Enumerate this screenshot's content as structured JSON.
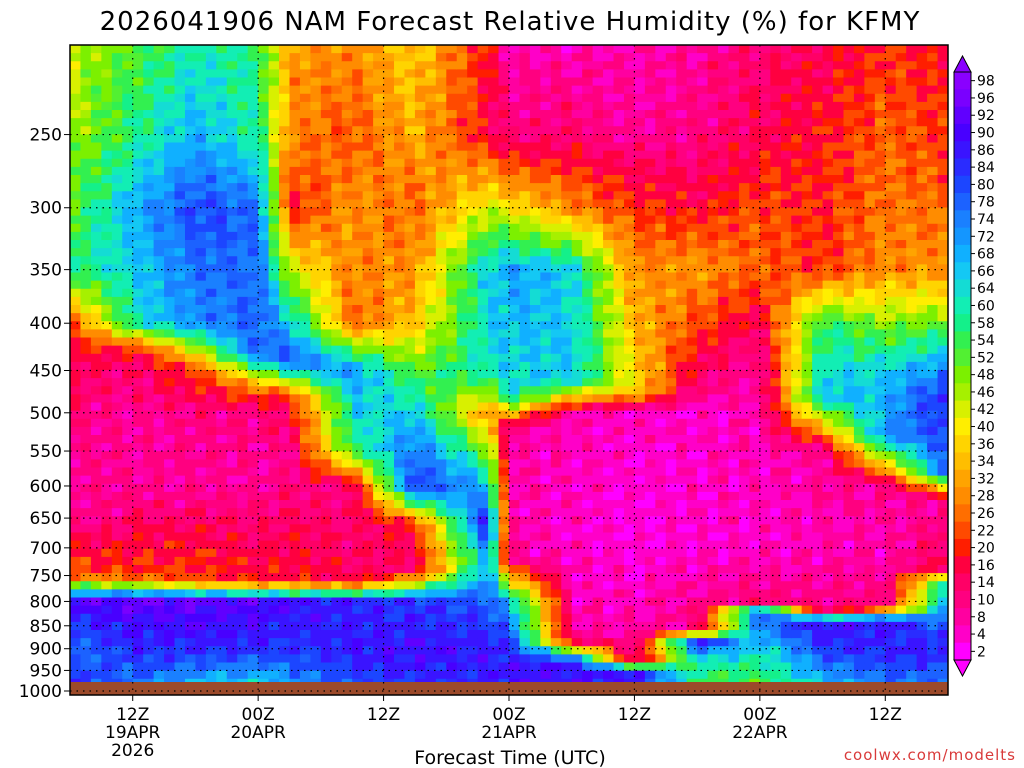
{
  "chart_data": {
    "type": "heatmap",
    "title": "2026041906 NAM Forecast Relative Humidity (%) for KFMY",
    "xlabel": "Forecast Time (UTC)",
    "ylabel": "",
    "credit": "coolwx.com/modelts",
    "y_axis": {
      "scale": "log-pressure",
      "range": [
        1010,
        200
      ],
      "ticks": [
        "250",
        "300",
        "350",
        "400",
        "450",
        "500",
        "550",
        "600",
        "650",
        "700",
        "750",
        "800",
        "850",
        "900",
        "950",
        "1000"
      ]
    },
    "x_axis": {
      "range_hours": [
        0,
        84
      ],
      "ticks": [
        {
          "hour": 6,
          "lines": [
            "12Z",
            "19APR",
            "2026"
          ]
        },
        {
          "hour": 18,
          "lines": [
            "00Z",
            "20APR"
          ]
        },
        {
          "hour": 30,
          "lines": [
            "12Z"
          ]
        },
        {
          "hour": 42,
          "lines": [
            "00Z",
            "21APR"
          ]
        },
        {
          "hour": 54,
          "lines": [
            "12Z"
          ]
        },
        {
          "hour": 66,
          "lines": [
            "00Z",
            "22APR"
          ]
        },
        {
          "hour": 78,
          "lines": [
            "12Z"
          ]
        }
      ]
    },
    "colorbar": {
      "labels": [
        "98",
        "96",
        "92",
        "90",
        "86",
        "84",
        "80",
        "78",
        "74",
        "72",
        "68",
        "66",
        "64",
        "60",
        "58",
        "54",
        "52",
        "48",
        "46",
        "42",
        "40",
        "36",
        "34",
        "32",
        "28",
        "26",
        "22",
        "20",
        "16",
        "14",
        "10",
        "8",
        "4",
        "2"
      ],
      "colors": [
        "#8a00ff",
        "#7a00ff",
        "#6000ff",
        "#4800ff",
        "#3a14ff",
        "#2a2cff",
        "#1c46ff",
        "#1c62ff",
        "#1a80ff",
        "#1496ff",
        "#10b0ff",
        "#14c8f4",
        "#14dcd4",
        "#12eeb4",
        "#14f08a",
        "#32f050",
        "#52f032",
        "#7cf000",
        "#a6f000",
        "#d8f000",
        "#ffee00",
        "#ffd400",
        "#ffbe00",
        "#ffa400",
        "#ff8c00",
        "#ff6e00",
        "#ff4a00",
        "#ff1e00",
        "#ff0040",
        "#ff0066",
        "#ff0080",
        "#ff00a0",
        "#ff00c8",
        "#ff00ff"
      ]
    },
    "ground_color": "#9c4a2a",
    "rh_profiles": [
      {
        "hour": 0,
        "levels": [
          [
            1000,
            86
          ],
          [
            900,
            76
          ],
          [
            800,
            92
          ],
          [
            750,
            26
          ],
          [
            650,
            10
          ],
          [
            500,
            12
          ],
          [
            400,
            22
          ],
          [
            350,
            58
          ],
          [
            300,
            52
          ],
          [
            250,
            48
          ],
          [
            200,
            44
          ]
        ]
      },
      {
        "hour": 6,
        "levels": [
          [
            1000,
            76
          ],
          [
            900,
            86
          ],
          [
            800,
            94
          ],
          [
            750,
            22
          ],
          [
            600,
            10
          ],
          [
            500,
            10
          ],
          [
            430,
            16
          ],
          [
            400,
            62
          ],
          [
            300,
            70
          ],
          [
            250,
            58
          ],
          [
            200,
            54
          ]
        ]
      },
      {
        "hour": 12,
        "levels": [
          [
            1000,
            66
          ],
          [
            900,
            86
          ],
          [
            800,
            94
          ],
          [
            760,
            24
          ],
          [
            600,
            10
          ],
          [
            500,
            12
          ],
          [
            450,
            22
          ],
          [
            400,
            74
          ],
          [
            300,
            82
          ],
          [
            250,
            70
          ],
          [
            200,
            62
          ]
        ]
      },
      {
        "hour": 18,
        "levels": [
          [
            1000,
            60
          ],
          [
            900,
            86
          ],
          [
            800,
            92
          ],
          [
            760,
            20
          ],
          [
            600,
            10
          ],
          [
            500,
            12
          ],
          [
            470,
            28
          ],
          [
            430,
            80
          ],
          [
            300,
            78
          ],
          [
            250,
            60
          ],
          [
            200,
            58
          ]
        ]
      },
      {
        "hour": 21,
        "levels": [
          [
            1000,
            70
          ],
          [
            900,
            84
          ],
          [
            800,
            90
          ],
          [
            760,
            20
          ],
          [
            550,
            10
          ],
          [
            480,
            20
          ],
          [
            440,
            82
          ],
          [
            300,
            20
          ],
          [
            250,
            30
          ],
          [
            200,
            32
          ]
        ]
      },
      {
        "hour": 27,
        "levels": [
          [
            1000,
            80
          ],
          [
            900,
            88
          ],
          [
            800,
            86
          ],
          [
            760,
            16
          ],
          [
            600,
            12
          ],
          [
            550,
            56
          ],
          [
            450,
            74
          ],
          [
            400,
            26
          ],
          [
            300,
            32
          ],
          [
            250,
            24
          ],
          [
            200,
            30
          ]
        ]
      },
      {
        "hour": 33,
        "levels": [
          [
            1000,
            84
          ],
          [
            900,
            90
          ],
          [
            800,
            84
          ],
          [
            740,
            14
          ],
          [
            660,
            20
          ],
          [
            600,
            86
          ],
          [
            520,
            72
          ],
          [
            400,
            36
          ],
          [
            300,
            26
          ],
          [
            250,
            34
          ],
          [
            200,
            38
          ]
        ]
      },
      {
        "hour": 40,
        "levels": [
          [
            1000,
            86
          ],
          [
            900,
            88
          ],
          [
            800,
            80
          ],
          [
            720,
            70
          ],
          [
            660,
            90
          ],
          [
            600,
            70
          ],
          [
            500,
            30
          ],
          [
            450,
            64
          ],
          [
            350,
            66
          ],
          [
            300,
            44
          ],
          [
            250,
            18
          ],
          [
            200,
            20
          ]
        ]
      },
      {
        "hour": 42,
        "levels": [
          [
            1000,
            90
          ],
          [
            900,
            86
          ],
          [
            800,
            70
          ],
          [
            720,
            10
          ],
          [
            600,
            8
          ],
          [
            520,
            10
          ],
          [
            480,
            64
          ],
          [
            350,
            72
          ],
          [
            300,
            40
          ],
          [
            250,
            12
          ],
          [
            200,
            8
          ]
        ]
      },
      {
        "hour": 48,
        "levels": [
          [
            1000,
            88
          ],
          [
            930,
            90
          ],
          [
            880,
            10
          ],
          [
            700,
            6
          ],
          [
            500,
            8
          ],
          [
            460,
            68
          ],
          [
            350,
            66
          ],
          [
            300,
            30
          ],
          [
            250,
            14
          ],
          [
            200,
            8
          ]
        ]
      },
      {
        "hour": 54,
        "levels": [
          [
            1000,
            86
          ],
          [
            950,
            90
          ],
          [
            930,
            10
          ],
          [
            700,
            4
          ],
          [
            500,
            6
          ],
          [
            470,
            40
          ],
          [
            350,
            30
          ],
          [
            300,
            22
          ],
          [
            250,
            10
          ],
          [
            200,
            8
          ]
        ]
      },
      {
        "hour": 60,
        "levels": [
          [
            1000,
            54
          ],
          [
            930,
            62
          ],
          [
            880,
            90
          ],
          [
            860,
            12
          ],
          [
            700,
            6
          ],
          [
            500,
            6
          ],
          [
            450,
            16
          ],
          [
            350,
            32
          ],
          [
            300,
            18
          ],
          [
            250,
            12
          ],
          [
            200,
            10
          ]
        ]
      },
      {
        "hour": 66,
        "levels": [
          [
            1000,
            52
          ],
          [
            900,
            64
          ],
          [
            820,
            84
          ],
          [
            800,
            12
          ],
          [
            700,
            6
          ],
          [
            500,
            8
          ],
          [
            430,
            10
          ],
          [
            350,
            26
          ],
          [
            300,
            24
          ],
          [
            250,
            16
          ],
          [
            200,
            14
          ]
        ]
      },
      {
        "hour": 72,
        "levels": [
          [
            1000,
            64
          ],
          [
            900,
            84
          ],
          [
            840,
            90
          ],
          [
            820,
            12
          ],
          [
            700,
            8
          ],
          [
            550,
            10
          ],
          [
            480,
            68
          ],
          [
            400,
            58
          ],
          [
            350,
            22
          ],
          [
            250,
            20
          ],
          [
            200,
            16
          ]
        ]
      },
      {
        "hour": 78,
        "levels": [
          [
            1000,
            76
          ],
          [
            900,
            86
          ],
          [
            840,
            88
          ],
          [
            810,
            12
          ],
          [
            700,
            8
          ],
          [
            600,
            10
          ],
          [
            530,
            74
          ],
          [
            450,
            66
          ],
          [
            350,
            30
          ],
          [
            250,
            26
          ],
          [
            200,
            22
          ]
        ]
      },
      {
        "hour": 84,
        "levels": [
          [
            1000,
            74
          ],
          [
            900,
            88
          ],
          [
            760,
            62
          ],
          [
            740,
            18
          ],
          [
            620,
            10
          ],
          [
            580,
            80
          ],
          [
            480,
            88
          ],
          [
            400,
            52
          ],
          [
            350,
            30
          ],
          [
            250,
            22
          ],
          [
            200,
            18
          ]
        ]
      }
    ]
  }
}
